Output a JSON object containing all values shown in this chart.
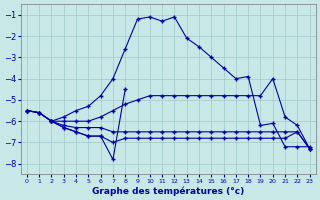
{
  "xlabel": "Graphe des températures (°c)",
  "background_color": "#c8e8e8",
  "line_color": "#0000aa",
  "grid_color": "#a0c8c8",
  "xlim": [
    -0.5,
    23.5
  ],
  "ylim": [
    -8.5,
    -0.5
  ],
  "yticks": [
    -8,
    -7,
    -6,
    -5,
    -4,
    -3,
    -2,
    -1
  ],
  "xticks": [
    0,
    1,
    2,
    3,
    4,
    5,
    6,
    7,
    8,
    9,
    10,
    11,
    12,
    13,
    14,
    15,
    16,
    17,
    18,
    19,
    20,
    21,
    22,
    23
  ],
  "lines": [
    {
      "x": [
        0,
        1,
        2,
        3,
        4,
        5,
        6,
        7,
        8,
        9,
        10,
        11,
        12,
        13,
        14,
        15,
        16,
        17,
        18,
        19,
        20,
        21,
        22,
        23
      ],
      "y": [
        -5.5,
        -5.6,
        -6.0,
        -5.8,
        -5.5,
        -5.3,
        -4.8,
        -4.0,
        -2.6,
        -1.2,
        -1.1,
        -1.3,
        -1.1,
        -2.1,
        -2.5,
        -3.0,
        -3.5,
        -4.0,
        -3.9,
        -6.2,
        -6.1,
        -7.2,
        -7.2,
        -7.2
      ]
    },
    {
      "x": [
        0,
        1,
        2,
        3,
        4,
        5,
        6,
        7,
        8,
        9,
        10,
        11,
        12,
        13,
        14,
        15,
        16,
        17,
        18,
        19,
        20,
        21,
        22,
        23
      ],
      "y": [
        -5.5,
        -5.6,
        -6.0,
        -6.0,
        -6.0,
        -6.0,
        -5.8,
        -5.5,
        -5.2,
        -5.0,
        -4.8,
        -4.8,
        -4.8,
        -4.8,
        -4.8,
        -4.8,
        -4.8,
        -4.8,
        -4.8,
        -4.8,
        -4.0,
        -5.8,
        -6.2,
        -7.3
      ]
    },
    {
      "x": [
        0,
        1,
        2,
        3,
        4,
        5,
        6,
        7,
        8,
        9,
        10,
        11,
        12,
        13,
        14,
        15,
        16,
        17,
        18,
        19,
        20,
        21,
        22,
        23
      ],
      "y": [
        -5.5,
        -5.6,
        -6.0,
        -6.2,
        -6.3,
        -6.3,
        -6.3,
        -6.5,
        -6.5,
        -6.5,
        -6.5,
        -6.5,
        -6.5,
        -6.5,
        -6.5,
        -6.5,
        -6.5,
        -6.5,
        -6.5,
        -6.5,
        -6.5,
        -6.5,
        -6.5,
        -7.3
      ]
    },
    {
      "x": [
        0,
        1,
        2,
        3,
        4,
        5,
        6,
        7,
        8,
        9,
        10,
        11,
        12,
        13,
        14,
        15,
        16,
        17,
        18,
        19,
        20,
        21,
        22,
        23
      ],
      "y": [
        -5.5,
        -5.6,
        -6.0,
        -6.3,
        -6.5,
        -6.7,
        -6.7,
        -7.0,
        -6.8,
        -6.8,
        -6.8,
        -6.8,
        -6.8,
        -6.8,
        -6.8,
        -6.8,
        -6.8,
        -6.8,
        -6.8,
        -6.8,
        -6.8,
        -6.8,
        -6.5,
        -7.3
      ]
    },
    {
      "x": [
        2,
        3,
        4,
        5,
        6,
        7,
        8
      ],
      "y": [
        -6.0,
        -6.3,
        -6.5,
        -6.7,
        -6.7,
        -7.8,
        -4.5
      ]
    }
  ]
}
